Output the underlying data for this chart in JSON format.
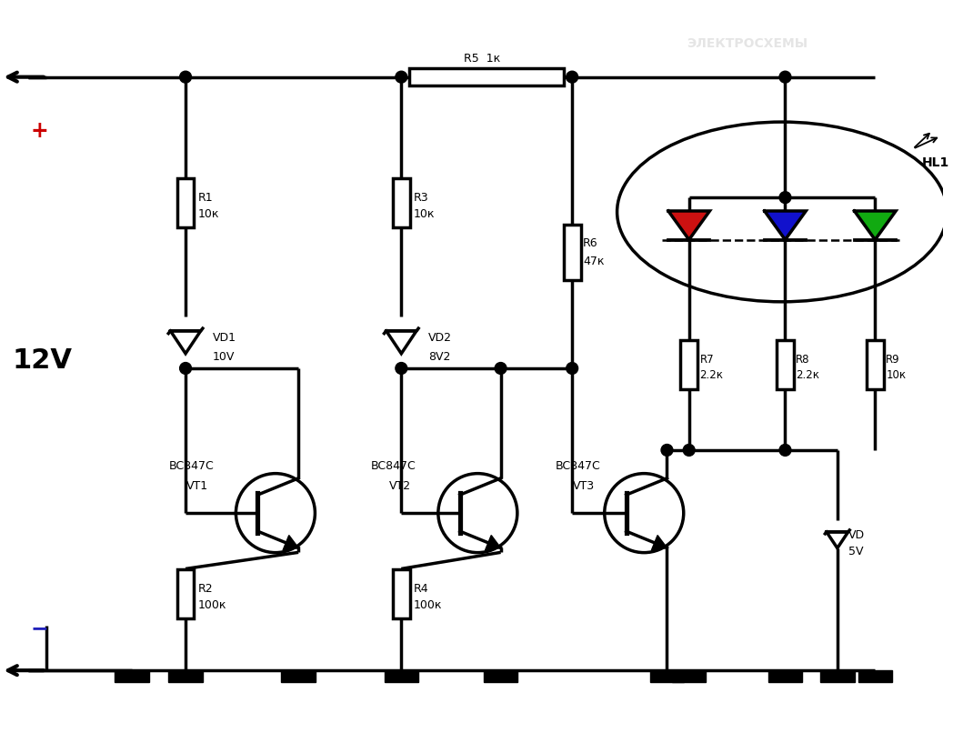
{
  "bg_color": "#ffffff",
  "lc": "#000000",
  "lw": 2.5,
  "figsize": [
    10.48,
    8.06
  ],
  "dpi": 100,
  "R_labels": {
    "R1": [
      "R1",
      "10к"
    ],
    "R2": [
      "R2",
      "100к"
    ],
    "R3": [
      "R3",
      "10к"
    ],
    "R4": [
      "R4",
      "100к"
    ],
    "R5": "R5  1к",
    "R6": [
      "R6",
      "47к"
    ],
    "R7": [
      "R7",
      "2.2к"
    ],
    "R8": [
      "R8",
      "2.2к"
    ],
    "R9": [
      "R9",
      "10к"
    ]
  },
  "VD_labels": {
    "VD1": [
      "VD1",
      "10V"
    ],
    "VD2": [
      "VD2",
      "8V2"
    ],
    "VD3": [
      "VD",
      "5V"
    ]
  },
  "VT_labels": {
    "VT1": [
      "BC847C",
      "VT1"
    ],
    "VT2": [
      "BC847C",
      "VT2"
    ],
    "VT3": [
      "BC847C",
      "VT3"
    ]
  },
  "HL": "HL1",
  "V12": "12V",
  "plus": "+",
  "minus": "−",
  "led_colors": [
    "#cc1111",
    "#1111cc",
    "#11aa11"
  ],
  "col_plus": "#cc0000",
  "col_minus": "#2222bb",
  "watermark": "ЭЛЕКТРОСХЕМЫ"
}
